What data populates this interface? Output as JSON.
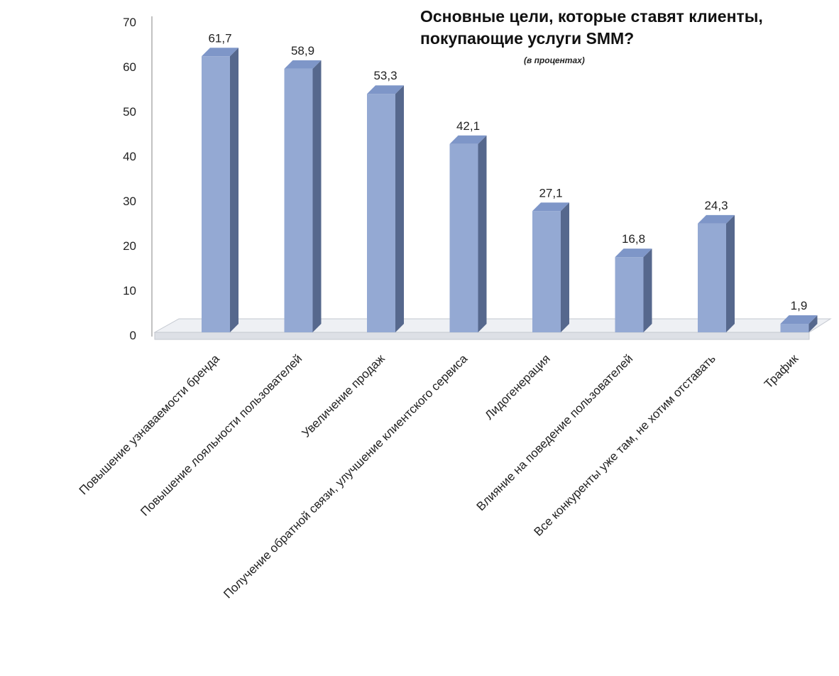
{
  "chart_data": {
    "type": "bar",
    "title_lines": [
      "Основные цели, которые ставят клиенты,",
      "покупающие услуги SMM?"
    ],
    "subtitle": "(в процентах)",
    "xlabel": "",
    "ylabel": "",
    "ylim": [
      0,
      70
    ],
    "yticks": [
      "0",
      "10",
      "20",
      "30",
      "40",
      "50",
      "60",
      "70"
    ],
    "categories": [
      "Повышение узнаваемости бренда",
      "Повышение лояльности пользователей",
      "Увеличение продаж",
      "Получение обратной связи, улучшение клиентского сервиса",
      "Лидогенерация",
      "Влияние на поведение пользователей",
      "Все конкуренты уже там, не хотим отставать",
      "Трафик"
    ],
    "values": [
      61.7,
      58.9,
      53.3,
      42.1,
      27.1,
      16.8,
      24.3,
      1.9
    ],
    "value_labels": [
      "61,7",
      "58,9",
      "53,3",
      "42,1",
      "27,1",
      "16,8",
      "24,3",
      "1,9"
    ],
    "grid": false,
    "legend": "none",
    "style": "3d-column",
    "colors": {
      "bar_front": "#94a9d3",
      "bar_top": "#7e96c8",
      "bar_side": "#56688d",
      "floor_fill": "#eef0f4",
      "floor_edge": "#c3c7cf",
      "axis_line": "#9a9a9a",
      "text": "#222222"
    }
  }
}
